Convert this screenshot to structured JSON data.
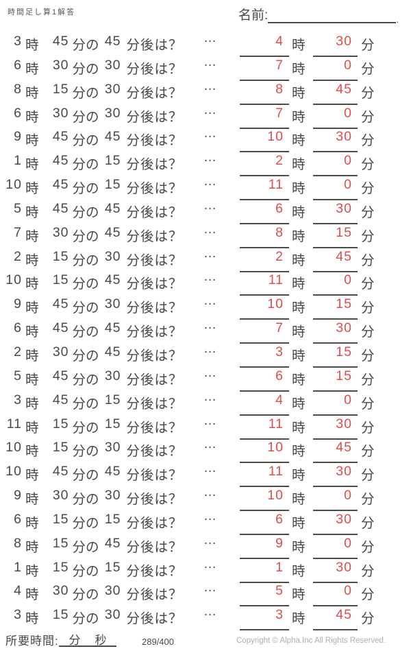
{
  "header": {
    "title": "時間足し算1解答",
    "name_label": "名前:",
    "name_line_period": "."
  },
  "labels": {
    "ji": "時",
    "fun_no": "分の",
    "fun_go": "分後は？",
    "dots": "…",
    "fun": "分"
  },
  "problems": [
    {
      "h": "3",
      "m": "45",
      "d": "45",
      "ah": "4",
      "am": "30"
    },
    {
      "h": "6",
      "m": "30",
      "d": "30",
      "ah": "7",
      "am": "0"
    },
    {
      "h": "8",
      "m": "15",
      "d": "30",
      "ah": "8",
      "am": "45"
    },
    {
      "h": "6",
      "m": "30",
      "d": "30",
      "ah": "7",
      "am": "0"
    },
    {
      "h": "9",
      "m": "45",
      "d": "45",
      "ah": "10",
      "am": "30"
    },
    {
      "h": "1",
      "m": "45",
      "d": "15",
      "ah": "2",
      "am": "0"
    },
    {
      "h": "10",
      "m": "45",
      "d": "15",
      "ah": "11",
      "am": "0"
    },
    {
      "h": "5",
      "m": "45",
      "d": "45",
      "ah": "6",
      "am": "30"
    },
    {
      "h": "7",
      "m": "30",
      "d": "45",
      "ah": "8",
      "am": "15"
    },
    {
      "h": "2",
      "m": "15",
      "d": "30",
      "ah": "2",
      "am": "45"
    },
    {
      "h": "10",
      "m": "15",
      "d": "45",
      "ah": "11",
      "am": "0"
    },
    {
      "h": "9",
      "m": "45",
      "d": "30",
      "ah": "10",
      "am": "15"
    },
    {
      "h": "6",
      "m": "45",
      "d": "45",
      "ah": "7",
      "am": "30"
    },
    {
      "h": "2",
      "m": "30",
      "d": "45",
      "ah": "3",
      "am": "15"
    },
    {
      "h": "5",
      "m": "45",
      "d": "30",
      "ah": "6",
      "am": "15"
    },
    {
      "h": "3",
      "m": "45",
      "d": "15",
      "ah": "4",
      "am": "0"
    },
    {
      "h": "11",
      "m": "15",
      "d": "15",
      "ah": "11",
      "am": "30"
    },
    {
      "h": "10",
      "m": "15",
      "d": "30",
      "ah": "10",
      "am": "45"
    },
    {
      "h": "10",
      "m": "45",
      "d": "45",
      "ah": "11",
      "am": "30"
    },
    {
      "h": "9",
      "m": "30",
      "d": "30",
      "ah": "10",
      "am": "0"
    },
    {
      "h": "6",
      "m": "15",
      "d": "15",
      "ah": "6",
      "am": "30"
    },
    {
      "h": "8",
      "m": "15",
      "d": "45",
      "ah": "9",
      "am": "0"
    },
    {
      "h": "1",
      "m": "15",
      "d": "15",
      "ah": "1",
      "am": "30"
    },
    {
      "h": "4",
      "m": "30",
      "d": "30",
      "ah": "5",
      "am": "0"
    },
    {
      "h": "3",
      "m": "15",
      "d": "30",
      "ah": "3",
      "am": "45"
    }
  ],
  "footer": {
    "duration_label": "所要時間:",
    "min_label": "分",
    "sec_label": "秒",
    "score": "289/400",
    "copyright": "Copyright ©  Alpha.Inc All Rights Reserved."
  },
  "colors": {
    "answer_red": "#e14b4a",
    "text": "#4c4744",
    "line": "#4e4a48",
    "copyright_gray": "#b3aeaa"
  }
}
